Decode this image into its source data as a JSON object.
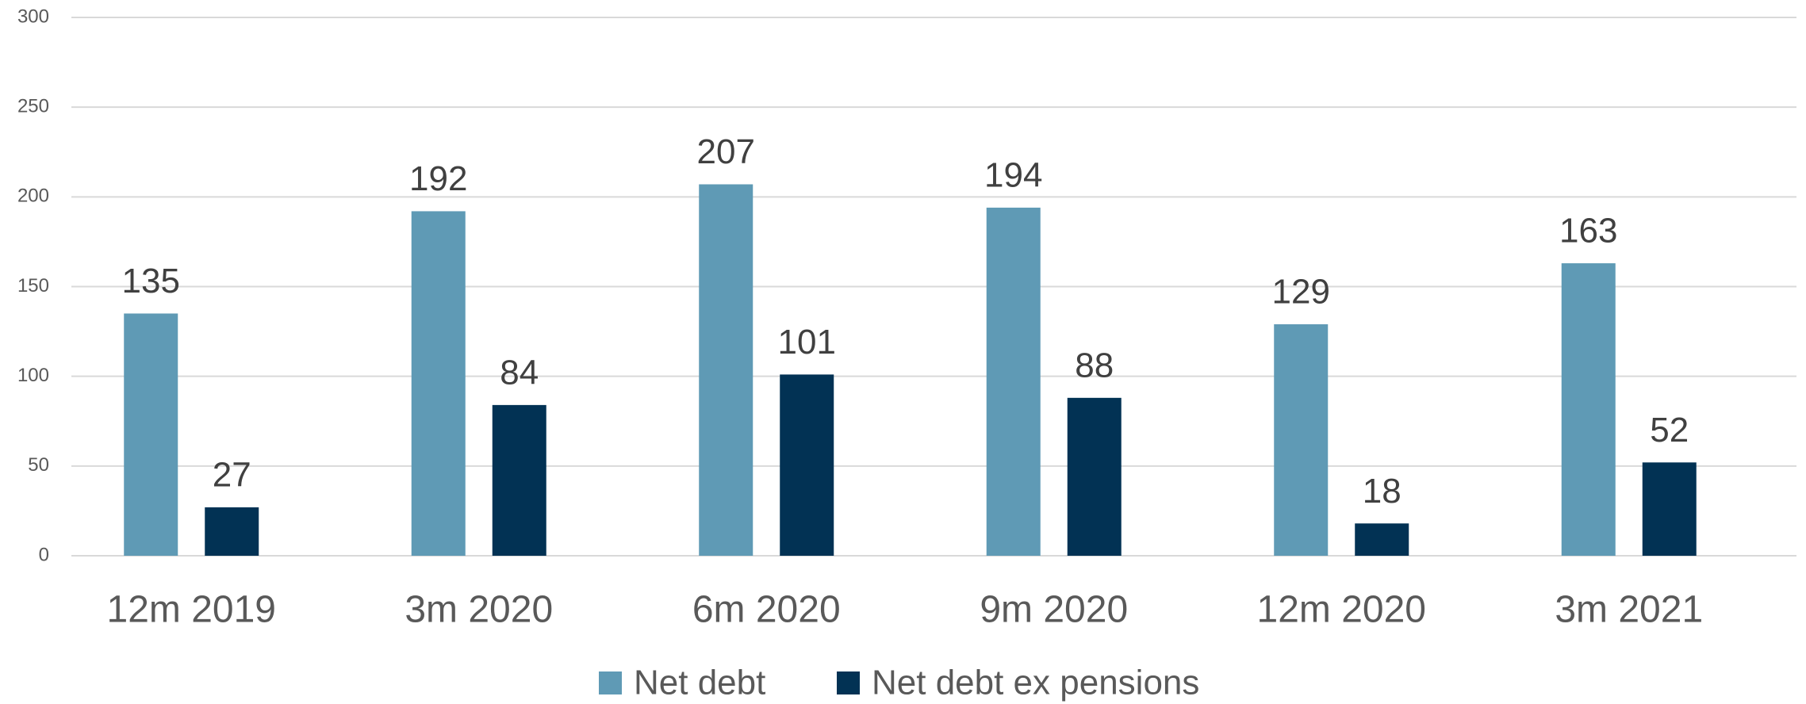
{
  "chart_data": {
    "type": "bar",
    "categories": [
      "12m 2019",
      "3m 2020",
      "6m 2020",
      "9m 2020",
      "12m 2020",
      "3m 2021"
    ],
    "series": [
      {
        "name": "Net debt",
        "color": "#5f9ab5",
        "values": [
          135,
          192,
          207,
          194,
          129,
          163
        ]
      },
      {
        "name": "Net debt ex pensions",
        "color": "#023254",
        "values": [
          27,
          84,
          101,
          88,
          18,
          52
        ]
      }
    ],
    "ylim": [
      0,
      300
    ],
    "yticks": [
      0,
      50,
      100,
      150,
      200,
      250,
      300
    ],
    "grid": true,
    "legend": "bottom"
  }
}
